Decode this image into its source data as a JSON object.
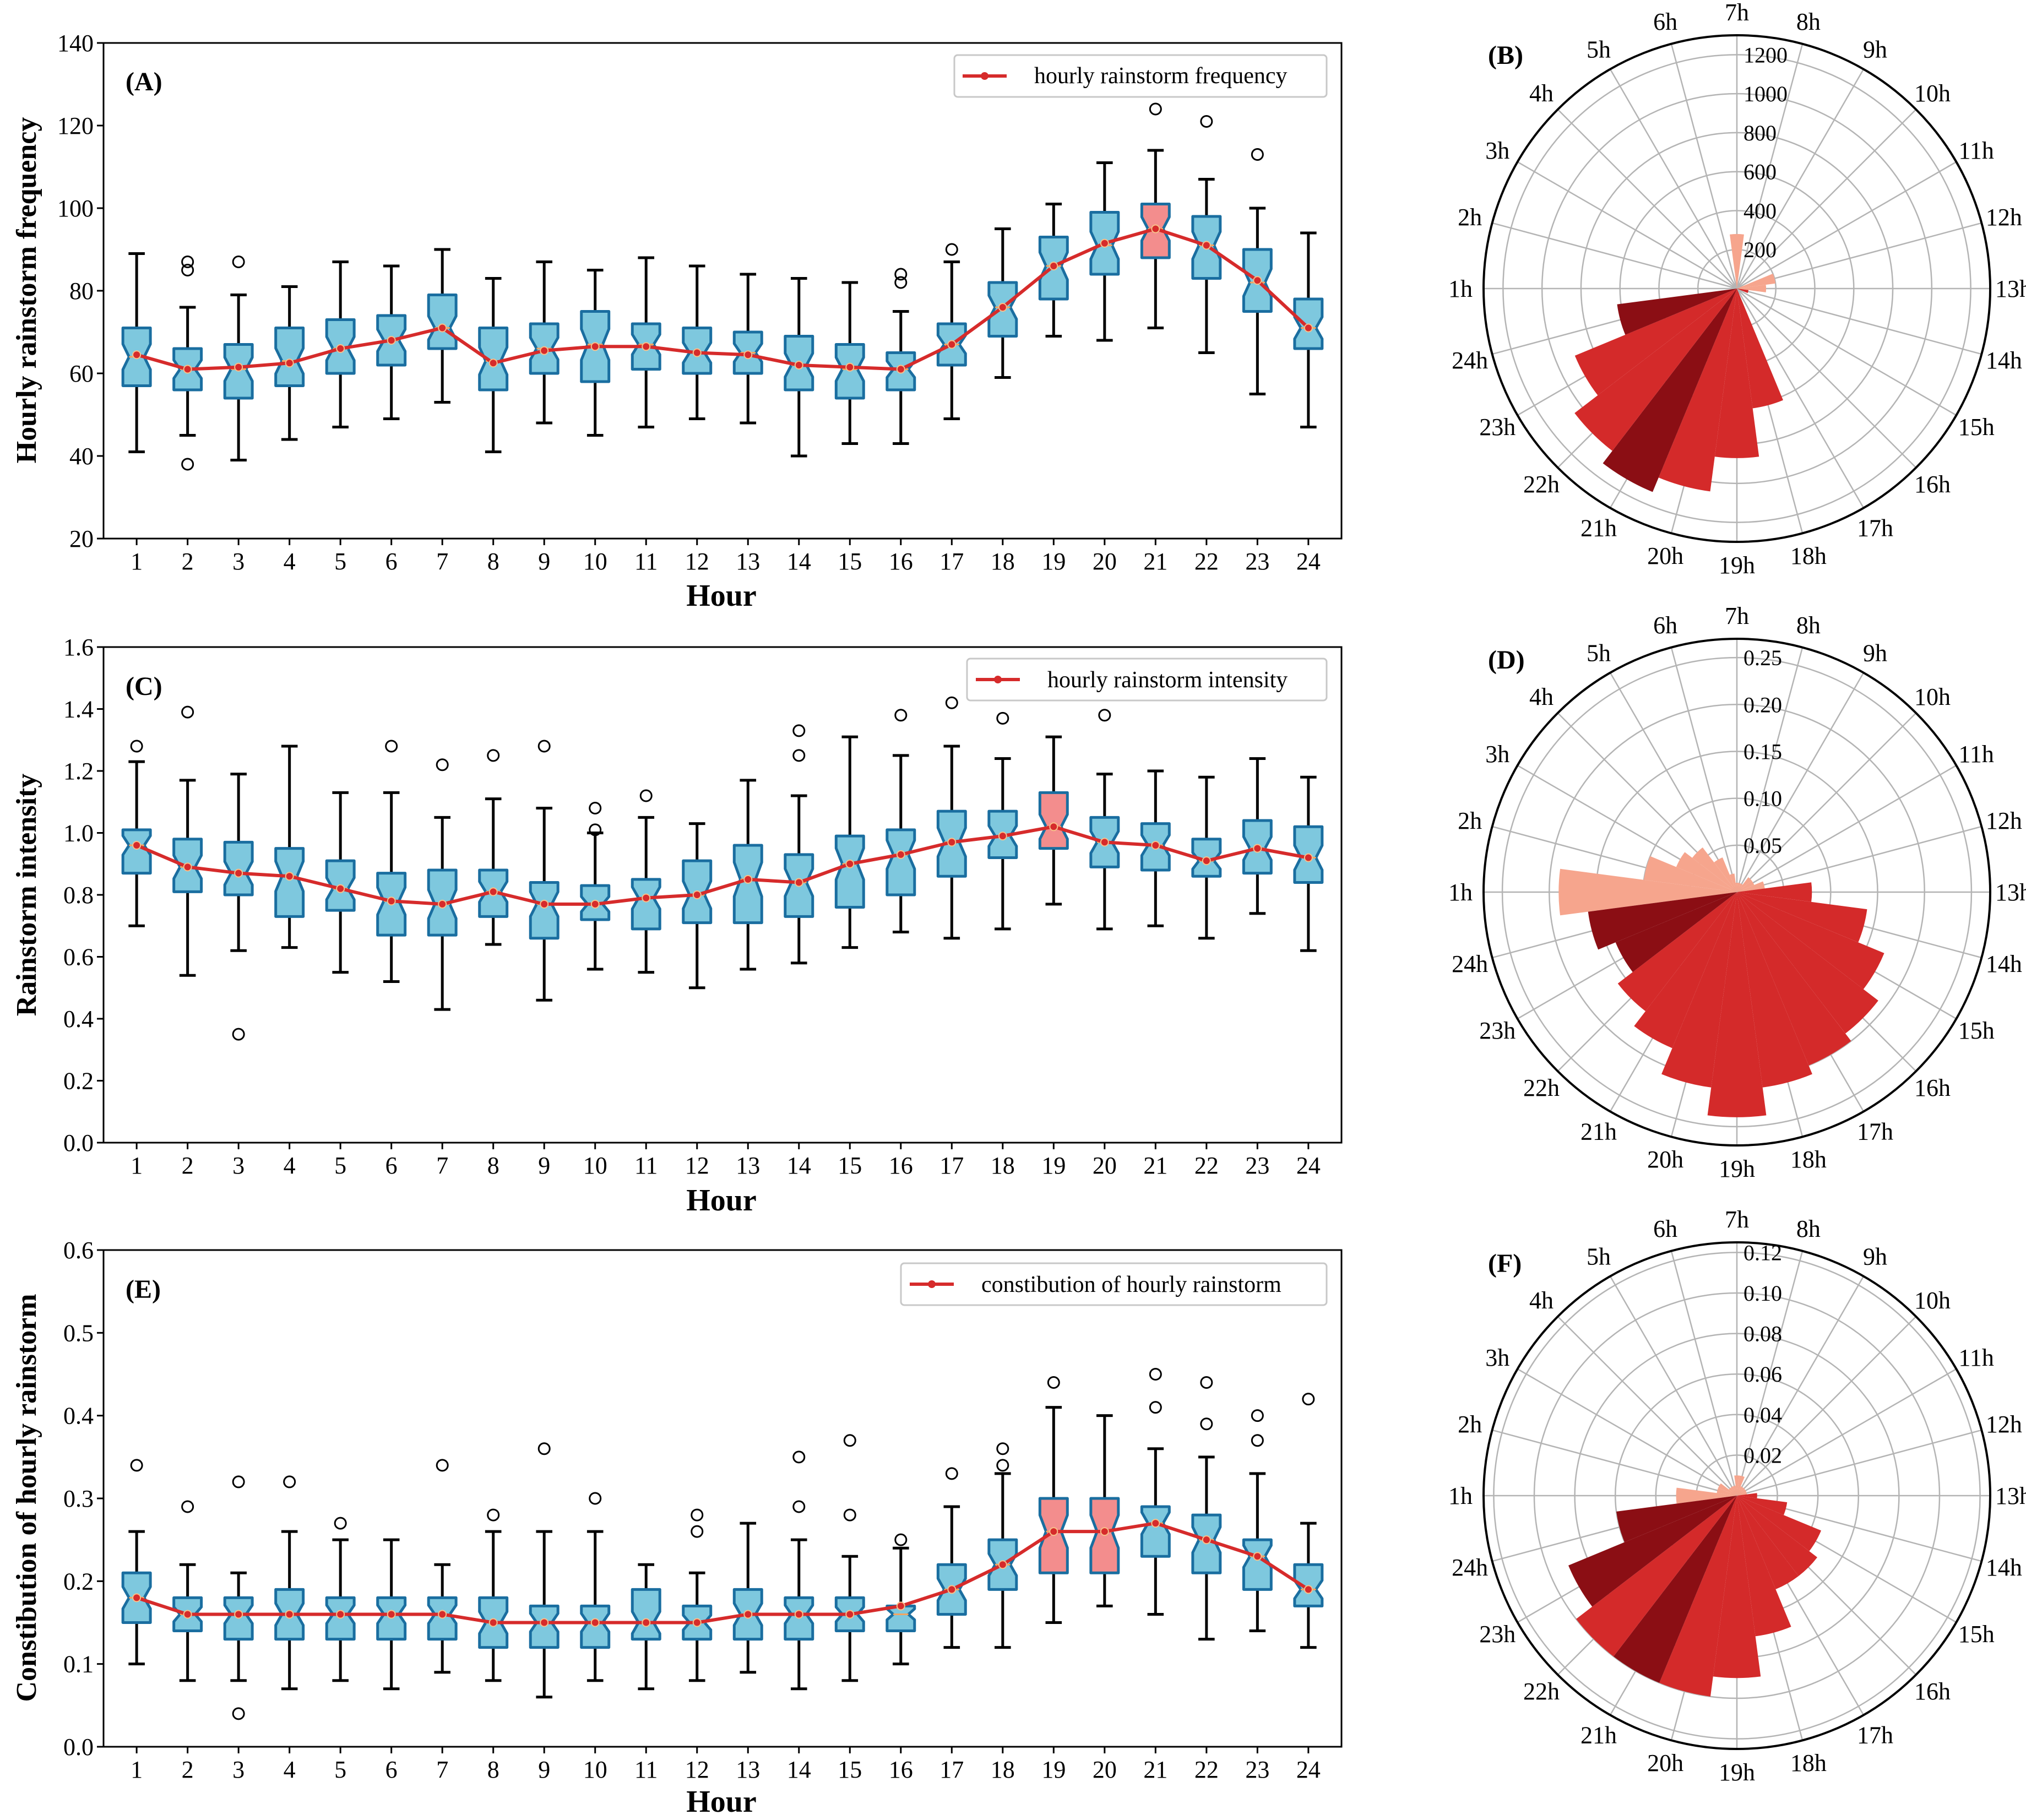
{
  "panels": {
    "A": {
      "label": "(A)",
      "ylabel": "Hourly rainstorm frequency",
      "xlabel": "Hour",
      "legend": "hourly rainstorm frequency"
    },
    "B": {
      "label": "(B)"
    },
    "C": {
      "label": "(C)",
      "ylabel": "Rainstorm intensity",
      "xlabel": "Hour",
      "legend": "hourly rainstorm intensity"
    },
    "D": {
      "label": "(D)"
    },
    "E": {
      "label": "(E)",
      "ylabel": "Constibution of hourly rainstorm",
      "xlabel": "Hour",
      "legend": "constibution of hourly rainstorm"
    },
    "F": {
      "label": "(F)"
    }
  },
  "colors": {
    "box_fill": "#7ec8de",
    "box_edge": "#1a6ea0",
    "box_highlight": "#f38d8d",
    "line": "#d62b2b",
    "whisker": "#000000",
    "polar_dark": "#8b0e14",
    "polar_mid": "#d42a2a",
    "polar_light": "#f6a58d",
    "grid": "#b4b4b4"
  },
  "chart_data": [
    {
      "id": "A",
      "type": "box",
      "title": "(A)",
      "xlabel": "Hour",
      "ylabel": "Hourly rainstorm frequency",
      "ylim": [
        20,
        140
      ],
      "yticks": [
        20,
        40,
        60,
        80,
        100,
        120,
        140
      ],
      "categories": [
        "1",
        "2",
        "3",
        "4",
        "5",
        "6",
        "7",
        "8",
        "9",
        "10",
        "11",
        "12",
        "13",
        "14",
        "15",
        "16",
        "17",
        "18",
        "19",
        "20",
        "21",
        "22",
        "23",
        "24"
      ],
      "legend": "hourly rainstorm frequency",
      "highlight": [
        20
      ],
      "boxes": [
        [
          41,
          57,
          64,
          71,
          89
        ],
        [
          45,
          56,
          61,
          66,
          76
        ],
        [
          39,
          54,
          61,
          67,
          79
        ],
        [
          44,
          57,
          63,
          71,
          81
        ],
        [
          47,
          60,
          66,
          73,
          87
        ],
        [
          49,
          62,
          68,
          74,
          86
        ],
        [
          53,
          66,
          71,
          79,
          90
        ],
        [
          41,
          56,
          63,
          71,
          83
        ],
        [
          48,
          60,
          66,
          72,
          87
        ],
        [
          45,
          58,
          67,
          75,
          85
        ],
        [
          47,
          61,
          67,
          72,
          88
        ],
        [
          49,
          60,
          65,
          71,
          86
        ],
        [
          48,
          60,
          65,
          70,
          84
        ],
        [
          40,
          56,
          62,
          69,
          83
        ],
        [
          43,
          54,
          61,
          67,
          82
        ],
        [
          43,
          56,
          61,
          65,
          75
        ],
        [
          49,
          62,
          67,
          72,
          87
        ],
        [
          59,
          69,
          76,
          82,
          95
        ],
        [
          69,
          78,
          86,
          93,
          101
        ],
        [
          68,
          84,
          91,
          99,
          111
        ],
        [
          71,
          88,
          95,
          101,
          114
        ],
        [
          65,
          83,
          91,
          98,
          107
        ],
        [
          55,
          75,
          82,
          90,
          100
        ],
        [
          47,
          66,
          71,
          78,
          94
        ]
      ],
      "mean_line": [
        64.5,
        61.0,
        61.5,
        62.5,
        66.0,
        68.0,
        71.0,
        62.5,
        65.5,
        66.5,
        66.5,
        65.0,
        64.5,
        62.0,
        61.5,
        61.0,
        67.0,
        76.0,
        86.0,
        91.5,
        95.0,
        91.0,
        82.5,
        71.0
      ],
      "outliers": [
        [
          2,
          38
        ],
        [
          2,
          85
        ],
        [
          2,
          87
        ],
        [
          3,
          87
        ],
        [
          16,
          82
        ],
        [
          16,
          84
        ],
        [
          17,
          90
        ],
        [
          21,
          124
        ],
        [
          22,
          121
        ],
        [
          23,
          113
        ]
      ]
    },
    {
      "id": "C",
      "type": "box",
      "title": "(C)",
      "xlabel": "Hour",
      "ylabel": "Rainstorm intensity",
      "ylim": [
        0.0,
        1.6
      ],
      "yticks": [
        0.0,
        0.2,
        0.4,
        0.6,
        0.8,
        1.0,
        1.2,
        1.4,
        1.6
      ],
      "categories": [
        "1",
        "2",
        "3",
        "4",
        "5",
        "6",
        "7",
        "8",
        "9",
        "10",
        "11",
        "12",
        "13",
        "14",
        "15",
        "16",
        "17",
        "18",
        "19",
        "20",
        "21",
        "22",
        "23",
        "24"
      ],
      "legend": "hourly rainstorm intensity",
      "highlight": [
        18
      ],
      "boxes": [
        [
          0.7,
          0.87,
          0.96,
          1.01,
          1.23
        ],
        [
          0.54,
          0.81,
          0.89,
          0.98,
          1.17
        ],
        [
          0.62,
          0.8,
          0.87,
          0.97,
          1.19
        ],
        [
          0.63,
          0.73,
          0.86,
          0.95,
          1.28
        ],
        [
          0.55,
          0.75,
          0.82,
          0.91,
          1.13
        ],
        [
          0.52,
          0.67,
          0.78,
          0.87,
          1.13
        ],
        [
          0.43,
          0.67,
          0.77,
          0.88,
          1.05
        ],
        [
          0.64,
          0.73,
          0.81,
          0.88,
          1.11
        ],
        [
          0.46,
          0.66,
          0.77,
          0.84,
          1.08
        ],
        [
          0.56,
          0.72,
          0.77,
          0.83,
          1.0
        ],
        [
          0.55,
          0.69,
          0.79,
          0.85,
          1.05
        ],
        [
          0.5,
          0.71,
          0.8,
          0.91,
          1.03
        ],
        [
          0.56,
          0.71,
          0.85,
          0.96,
          1.17
        ],
        [
          0.58,
          0.73,
          0.84,
          0.93,
          1.12
        ],
        [
          0.63,
          0.76,
          0.9,
          0.99,
          1.31
        ],
        [
          0.68,
          0.8,
          0.93,
          1.01,
          1.25
        ],
        [
          0.66,
          0.86,
          0.97,
          1.07,
          1.28
        ],
        [
          0.69,
          0.92,
          0.99,
          1.07,
          1.24
        ],
        [
          0.77,
          0.95,
          1.02,
          1.13,
          1.31
        ],
        [
          0.69,
          0.89,
          0.97,
          1.05,
          1.19
        ],
        [
          0.7,
          0.88,
          0.96,
          1.03,
          1.2
        ],
        [
          0.66,
          0.86,
          0.91,
          0.98,
          1.18
        ],
        [
          0.74,
          0.87,
          0.95,
          1.04,
          1.24
        ],
        [
          0.62,
          0.84,
          0.92,
          1.02,
          1.18
        ]
      ],
      "mean_line": [
        0.96,
        0.89,
        0.87,
        0.86,
        0.82,
        0.78,
        0.77,
        0.81,
        0.77,
        0.77,
        0.79,
        0.8,
        0.85,
        0.84,
        0.9,
        0.93,
        0.97,
        0.99,
        1.02,
        0.97,
        0.96,
        0.91,
        0.95,
        0.92
      ],
      "outliers": [
        [
          1,
          1.28
        ],
        [
          2,
          1.39
        ],
        [
          3,
          0.35
        ],
        [
          6,
          1.28
        ],
        [
          7,
          1.22
        ],
        [
          8,
          1.25
        ],
        [
          9,
          1.28
        ],
        [
          10,
          1.01
        ],
        [
          10,
          1.08
        ],
        [
          11,
          1.12
        ],
        [
          14,
          1.25
        ],
        [
          14,
          1.33
        ],
        [
          16,
          1.38
        ],
        [
          17,
          1.42
        ],
        [
          18,
          1.37
        ],
        [
          20,
          1.38
        ]
      ]
    },
    {
      "id": "E",
      "type": "box",
      "title": "(E)",
      "xlabel": "Hour",
      "ylabel": "Constibution of hourly rainstorm",
      "ylim": [
        0.0,
        0.6
      ],
      "yticks": [
        0.0,
        0.1,
        0.2,
        0.3,
        0.4,
        0.5,
        0.6
      ],
      "categories": [
        "1",
        "2",
        "3",
        "4",
        "5",
        "6",
        "7",
        "8",
        "9",
        "10",
        "11",
        "12",
        "13",
        "14",
        "15",
        "16",
        "17",
        "18",
        "19",
        "20",
        "21",
        "22",
        "23",
        "24"
      ],
      "legend": "constibution of hourly rainstorm",
      "highlight": [
        18,
        19
      ],
      "boxes": [
        [
          0.1,
          0.15,
          0.18,
          0.21,
          0.26
        ],
        [
          0.08,
          0.14,
          0.16,
          0.18,
          0.22
        ],
        [
          0.08,
          0.13,
          0.16,
          0.18,
          0.21
        ],
        [
          0.07,
          0.13,
          0.16,
          0.19,
          0.26
        ],
        [
          0.08,
          0.13,
          0.16,
          0.18,
          0.25
        ],
        [
          0.07,
          0.13,
          0.16,
          0.18,
          0.25
        ],
        [
          0.09,
          0.13,
          0.16,
          0.18,
          0.22
        ],
        [
          0.08,
          0.12,
          0.15,
          0.18,
          0.26
        ],
        [
          0.06,
          0.12,
          0.15,
          0.17,
          0.26
        ],
        [
          0.08,
          0.12,
          0.15,
          0.17,
          0.26
        ],
        [
          0.07,
          0.13,
          0.15,
          0.19,
          0.22
        ],
        [
          0.08,
          0.13,
          0.15,
          0.17,
          0.21
        ],
        [
          0.09,
          0.13,
          0.16,
          0.19,
          0.27
        ],
        [
          0.07,
          0.13,
          0.16,
          0.18,
          0.25
        ],
        [
          0.08,
          0.14,
          0.16,
          0.18,
          0.23
        ],
        [
          0.1,
          0.14,
          0.16,
          0.17,
          0.24
        ],
        [
          0.12,
          0.16,
          0.19,
          0.22,
          0.29
        ],
        [
          0.12,
          0.19,
          0.22,
          0.25,
          0.33
        ],
        [
          0.15,
          0.21,
          0.26,
          0.3,
          0.41
        ],
        [
          0.17,
          0.21,
          0.26,
          0.3,
          0.4
        ],
        [
          0.16,
          0.23,
          0.27,
          0.29,
          0.36
        ],
        [
          0.13,
          0.21,
          0.25,
          0.28,
          0.35
        ],
        [
          0.14,
          0.19,
          0.23,
          0.25,
          0.33
        ],
        [
          0.12,
          0.17,
          0.19,
          0.22,
          0.27
        ]
      ],
      "mean_line": [
        0.18,
        0.16,
        0.16,
        0.16,
        0.16,
        0.16,
        0.16,
        0.15,
        0.15,
        0.15,
        0.15,
        0.15,
        0.16,
        0.16,
        0.16,
        0.17,
        0.19,
        0.22,
        0.26,
        0.26,
        0.27,
        0.25,
        0.23,
        0.19
      ],
      "outliers": [
        [
          1,
          0.34
        ],
        [
          2,
          0.29
        ],
        [
          3,
          0.04
        ],
        [
          3,
          0.32
        ],
        [
          4,
          0.32
        ],
        [
          5,
          0.27
        ],
        [
          7,
          0.34
        ],
        [
          8,
          0.28
        ],
        [
          9,
          0.36
        ],
        [
          10,
          0.3
        ],
        [
          12,
          0.26
        ],
        [
          12,
          0.28
        ],
        [
          14,
          0.29
        ],
        [
          14,
          0.35
        ],
        [
          15,
          0.28
        ],
        [
          15,
          0.37
        ],
        [
          16,
          0.25
        ],
        [
          17,
          0.33
        ],
        [
          18,
          0.34
        ],
        [
          18,
          0.36
        ],
        [
          19,
          0.44
        ],
        [
          21,
          0.41
        ],
        [
          21,
          0.45
        ],
        [
          22,
          0.39
        ],
        [
          22,
          0.44
        ],
        [
          23,
          0.37
        ],
        [
          23,
          0.4
        ],
        [
          24,
          0.42
        ]
      ]
    },
    {
      "id": "B",
      "type": "polar-bar",
      "title": "(B)",
      "rlim": [
        0,
        1300
      ],
      "rticks": [
        200,
        400,
        600,
        800,
        1000,
        1200
      ],
      "hours": [
        "1h",
        "2h",
        "3h",
        "4h",
        "5h",
        "6h",
        "7h",
        "8h",
        "9h",
        "10h",
        "11h",
        "12h",
        "13h",
        "14h",
        "15h",
        "16h",
        "17h",
        "18h",
        "19h",
        "20h",
        "21h",
        "22h",
        "23h",
        "24h"
      ],
      "values": [
        0,
        0,
        0,
        0,
        0,
        0,
        280,
        0,
        0,
        0,
        0,
        200,
        150,
        60,
        0,
        0,
        0,
        620,
        870,
        1050,
        1130,
        1050,
        900,
        620
      ],
      "shades": [
        "",
        "",
        "",
        "",
        "",
        "",
        "light",
        "",
        "",
        "",
        "",
        "light",
        "light",
        "mid",
        "",
        "",
        "",
        "mid",
        "mid",
        "mid",
        "dark",
        "mid",
        "mid",
        "dark"
      ]
    },
    {
      "id": "D",
      "type": "polar-bar",
      "title": "(D)",
      "rlim": [
        0,
        0.27
      ],
      "rticks": [
        0.05,
        0.1,
        0.15,
        0.2,
        0.25
      ],
      "hours": [
        "1h",
        "2h",
        "3h",
        "4h",
        "5h",
        "6h",
        "7h",
        "8h",
        "9h",
        "10h",
        "11h",
        "12h",
        "13h",
        "14h",
        "15h",
        "16h",
        "17h",
        "18h",
        "19h",
        "20h",
        "21h",
        "22h",
        "23h",
        "24h"
      ],
      "values": [
        0.19,
        0.1,
        0.07,
        0.06,
        0.04,
        0.02,
        0.01,
        0.01,
        0.01,
        0.02,
        0.02,
        0.03,
        0.08,
        0.14,
        0.17,
        0.19,
        0.2,
        0.21,
        0.24,
        0.21,
        0.18,
        0.16,
        0.14,
        0.16
      ],
      "shades": [
        "light",
        "light",
        "light",
        "light",
        "light",
        "light",
        "light",
        "light",
        "light",
        "light",
        "light",
        "light",
        "mid",
        "mid",
        "mid",
        "mid",
        "mid",
        "mid",
        "mid",
        "mid",
        "mid",
        "mid",
        "dark",
        "dark"
      ]
    },
    {
      "id": "F",
      "type": "polar-bar",
      "title": "(F)",
      "rlim": [
        0,
        0.125
      ],
      "rticks": [
        0.02,
        0.04,
        0.06,
        0.08,
        0.1,
        0.12
      ],
      "hours": [
        "1h",
        "2h",
        "3h",
        "4h",
        "5h",
        "6h",
        "7h",
        "8h",
        "9h",
        "10h",
        "11h",
        "12h",
        "13h",
        "14h",
        "15h",
        "16h",
        "17h",
        "18h",
        "19h",
        "20h",
        "21h",
        "22h",
        "23h",
        "24h"
      ],
      "values": [
        0.03,
        0.01,
        0.01,
        0.005,
        0.005,
        0.005,
        0.01,
        0.01,
        0.005,
        0.005,
        0.005,
        0.005,
        0.01,
        0.025,
        0.045,
        0.05,
        0.05,
        0.07,
        0.09,
        0.1,
        0.1,
        0.1,
        0.09,
        0.06
      ],
      "shades": [
        "light",
        "light",
        "light",
        "light",
        "light",
        "light",
        "light",
        "light",
        "light",
        "light",
        "light",
        "light",
        "mid",
        "mid",
        "mid",
        "mid",
        "mid",
        "mid",
        "mid",
        "mid",
        "dark",
        "mid",
        "dark",
        "dark"
      ]
    }
  ]
}
